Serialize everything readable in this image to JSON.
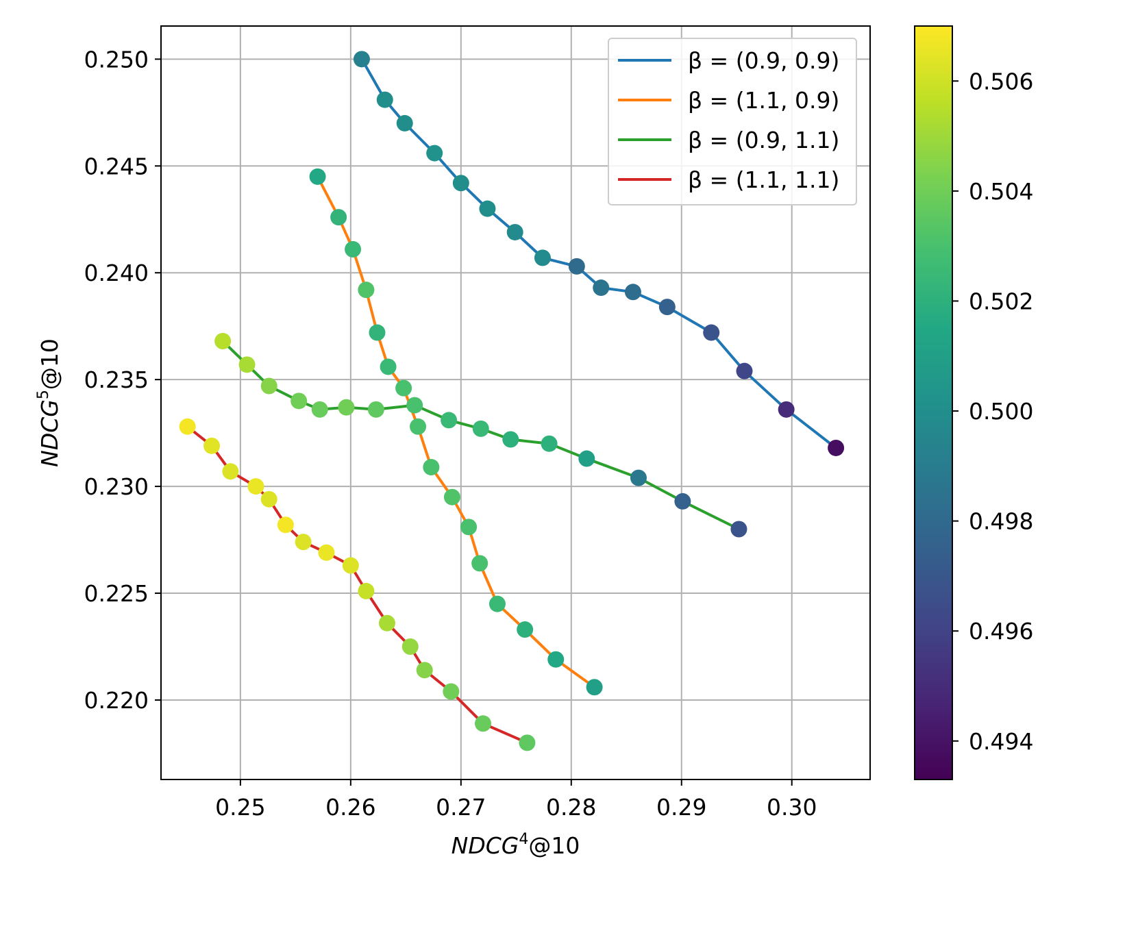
{
  "chart_data": {
    "type": "scatter",
    "xlabel": {
      "base": "NDCG",
      "sup": "4",
      "rest": "@10"
    },
    "ylabel": {
      "base": "NDCG",
      "sup": "5",
      "rest": "@10"
    },
    "xlim": [
      0.2428,
      0.3071
    ],
    "ylim": [
      0.21628,
      0.25155
    ],
    "xticks": [
      0.25,
      0.26,
      0.27,
      0.28,
      0.29,
      0.3
    ],
    "xtick_labels": [
      "0.25",
      "0.26",
      "0.27",
      "0.28",
      "0.29",
      "0.30"
    ],
    "yticks": [
      0.22,
      0.225,
      0.23,
      0.235,
      0.24,
      0.245,
      0.25
    ],
    "ytick_labels": [
      "0.220",
      "0.225",
      "0.230",
      "0.235",
      "0.240",
      "0.245",
      "0.250"
    ],
    "grid": true,
    "legend_position": "top-right",
    "colorbar": {
      "colormap": "viridis",
      "range": [
        0.4933,
        0.507
      ],
      "ticks": [
        0.494,
        0.496,
        0.498,
        0.5,
        0.502,
        0.504,
        0.506
      ],
      "tick_labels": [
        "0.494",
        "0.496",
        "0.498",
        "0.500",
        "0.502",
        "0.504",
        "0.506"
      ]
    },
    "series": [
      {
        "name": "β = (0.9, 0.9)",
        "line_color": "#1f77b4",
        "x": [
          0.261,
          0.2631,
          0.2649,
          0.2676,
          0.27,
          0.2724,
          0.2749,
          0.2774,
          0.2805,
          0.2827,
          0.2856,
          0.2887,
          0.2927,
          0.2957,
          0.2995,
          0.304
        ],
        "y": [
          0.25,
          0.2481,
          0.247,
          0.2456,
          0.2442,
          0.243,
          0.2419,
          0.2407,
          0.2403,
          0.2393,
          0.2391,
          0.2384,
          0.2372,
          0.2354,
          0.2336,
          0.2318
        ],
        "c": [
          0.4992,
          0.5,
          0.5,
          0.5002,
          0.5,
          0.5,
          0.4998,
          0.4998,
          0.498,
          0.4985,
          0.4982,
          0.4975,
          0.4968,
          0.4962,
          0.495,
          0.4938
        ]
      },
      {
        "name": "β = (1.1, 0.9)",
        "line_color": "#ff7f0e",
        "x": [
          0.257,
          0.2589,
          0.2602,
          0.2614,
          0.2624,
          0.2634,
          0.2648,
          0.2661,
          0.2673,
          0.2692,
          0.2707,
          0.2717,
          0.2733,
          0.2758,
          0.2786,
          0.2821
        ],
        "y": [
          0.2445,
          0.2426,
          0.2411,
          0.2392,
          0.2372,
          0.2356,
          0.2346,
          0.2328,
          0.2309,
          0.2295,
          0.2281,
          0.2264,
          0.2245,
          0.2233,
          0.2219,
          0.2206
        ],
        "c": [
          0.5015,
          0.5022,
          0.5025,
          0.5032,
          0.5022,
          0.5025,
          0.503,
          0.503,
          0.503,
          0.5032,
          0.503,
          0.503,
          0.5025,
          0.502,
          0.5015,
          0.501
        ]
      },
      {
        "name": "β = (0.9, 1.1)",
        "line_color": "#2ca02c",
        "x": [
          0.2484,
          0.2506,
          0.2526,
          0.2553,
          0.2572,
          0.2596,
          0.2623,
          0.2658,
          0.2689,
          0.2718,
          0.2745,
          0.278,
          0.2814,
          0.2861,
          0.2901,
          0.2952
        ],
        "y": [
          0.2368,
          0.2357,
          0.2347,
          0.234,
          0.2336,
          0.2337,
          0.2336,
          0.2338,
          0.2331,
          0.2327,
          0.2322,
          0.232,
          0.2313,
          0.2304,
          0.2293,
          0.228
        ],
        "c": [
          0.5055,
          0.5052,
          0.5045,
          0.504,
          0.5038,
          0.504,
          0.5036,
          0.503,
          0.5025,
          0.5025,
          0.502,
          0.502,
          0.501,
          0.4988,
          0.4975,
          0.4968
        ]
      },
      {
        "name": "β = (1.1, 1.1)",
        "line_color": "#d62728",
        "x": [
          0.2452,
          0.2474,
          0.2491,
          0.2514,
          0.2526,
          0.2541,
          0.2557,
          0.2578,
          0.26,
          0.2614,
          0.2633,
          0.2654,
          0.2667,
          0.2691,
          0.272,
          0.276
        ],
        "y": [
          0.2328,
          0.2319,
          0.2307,
          0.23,
          0.2294,
          0.2282,
          0.2274,
          0.2269,
          0.2263,
          0.2251,
          0.2236,
          0.2225,
          0.2214,
          0.2204,
          0.2189,
          0.218
        ],
        "c": [
          0.5068,
          0.5064,
          0.5063,
          0.5066,
          0.5063,
          0.5068,
          0.5063,
          0.5066,
          0.5063,
          0.5058,
          0.5052,
          0.5048,
          0.5045,
          0.504,
          0.5038,
          0.5036
        ]
      }
    ]
  }
}
